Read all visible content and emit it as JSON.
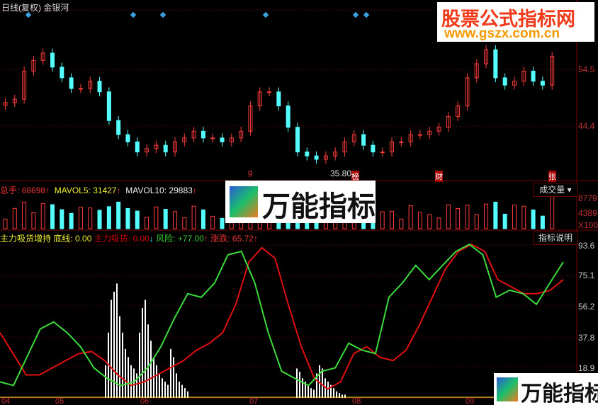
{
  "header": {
    "title": "日线(复权)",
    "stock": "金银河"
  },
  "price_axis": [
    "54.5",
    "44.4"
  ],
  "low_label": "35.80",
  "markers": {
    "g": "g",
    "bang": "榜",
    "cai": "财",
    "zhang": "张"
  },
  "volume": {
    "total_label": "总手:",
    "total": "68698",
    "mavol5_label": "MAVOL5:",
    "mavol5": "31427",
    "mavol10_label": "MAVOL10:",
    "mavol10": "29883",
    "selector": "成交量",
    "axis": [
      "8779",
      "4389",
      "X100"
    ]
  },
  "indicator": {
    "name": "主力吸货增持",
    "base_label": "底线:",
    "base": "0.00",
    "buy_label": "主力吸货:",
    "buy": "0.00",
    "risk_label": "风险:",
    "risk": "+77.00",
    "change_label": "涨跌:",
    "change": "65.72",
    "help": "指标说明",
    "axis": [
      "93.6",
      "75.1",
      "56.2",
      "37.8",
      "18.9"
    ]
  },
  "x_axis": [
    "04",
    "05",
    "06",
    "07",
    "08",
    "09"
  ],
  "watermarks": {
    "site_name": "股票公式指标网",
    "site_url": "www.gszx.com.cn",
    "brand": "万能指标"
  },
  "colors": {
    "up": "#ff3c3c",
    "down": "#54ffff",
    "green": "#3cdc3c",
    "red": "#e01010",
    "axis": "#c03030"
  },
  "chart_data": {
    "type": "candlestick",
    "closes": [
      48.6,
      49.2,
      54.2,
      56.1,
      57.4,
      54.9,
      53.0,
      51.1,
      51.1,
      52.4,
      50.5,
      45.4,
      42.9,
      41.6,
      39.8,
      40.4,
      41.0,
      39.8,
      41.6,
      42.3,
      43.5,
      42.3,
      42.3,
      41.6,
      42.3,
      43.5,
      48.0,
      50.5,
      50.5,
      48.0,
      44.2,
      39.8,
      39.1,
      38.5,
      39.1,
      39.8,
      41.6,
      42.9,
      41.0,
      39.8,
      39.8,
      41.6,
      41.6,
      42.9,
      42.9,
      43.5,
      44.2,
      46.1,
      48.0,
      53.0,
      55.5,
      58.0,
      53.0,
      51.7,
      52.4,
      54.2,
      52.4,
      51.7,
      56.8
    ],
    "indicator_green": [
      9.8,
      7.6,
      24.9,
      42.2,
      46.5,
      40.0,
      31.4,
      18.4,
      11.9,
      7.6,
      9.8,
      18.4,
      31.4,
      48.7,
      63.8,
      61.6,
      70.3,
      87.6,
      89.7,
      70.3,
      40.0,
      16.3,
      11.9,
      7.6,
      16.3,
      18.4,
      33.5,
      29.2,
      27.1,
      61.6,
      70.3,
      81.1,
      72.4,
      81.1,
      89.7,
      94.0,
      87.6,
      61.6,
      65.9,
      63.8,
      57.3,
      70.3,
      83.2
    ],
    "indicator_red": [
      40.0,
      27.1,
      14.1,
      14.1,
      18.4,
      22.8,
      27.1,
      28.4,
      22.8,
      14.1,
      7.6,
      9.8,
      14.1,
      18.4,
      22.8,
      29.2,
      33.5,
      40.0,
      57.3,
      83.2,
      91.9,
      85.4,
      57.3,
      31.4,
      11.9,
      5.5,
      9.8,
      27.1,
      31.4,
      24.9,
      22.8,
      29.2,
      44.3,
      61.6,
      78.9,
      89.7,
      94.0,
      89.7,
      72.4,
      68.1,
      63.8,
      63.8,
      65.9,
      72.4
    ],
    "histogram_1": [
      20,
      40,
      60,
      65,
      70,
      50,
      40,
      30,
      25,
      20,
      18,
      15,
      40,
      55,
      60,
      45,
      35,
      25,
      20,
      15,
      12,
      10,
      8,
      30,
      25,
      15,
      10,
      8,
      6,
      4
    ],
    "histogram_2": [
      18,
      16,
      12,
      10,
      8,
      6,
      5,
      15,
      20,
      18,
      12,
      10,
      8,
      6,
      4,
      3,
      2,
      2
    ]
  }
}
